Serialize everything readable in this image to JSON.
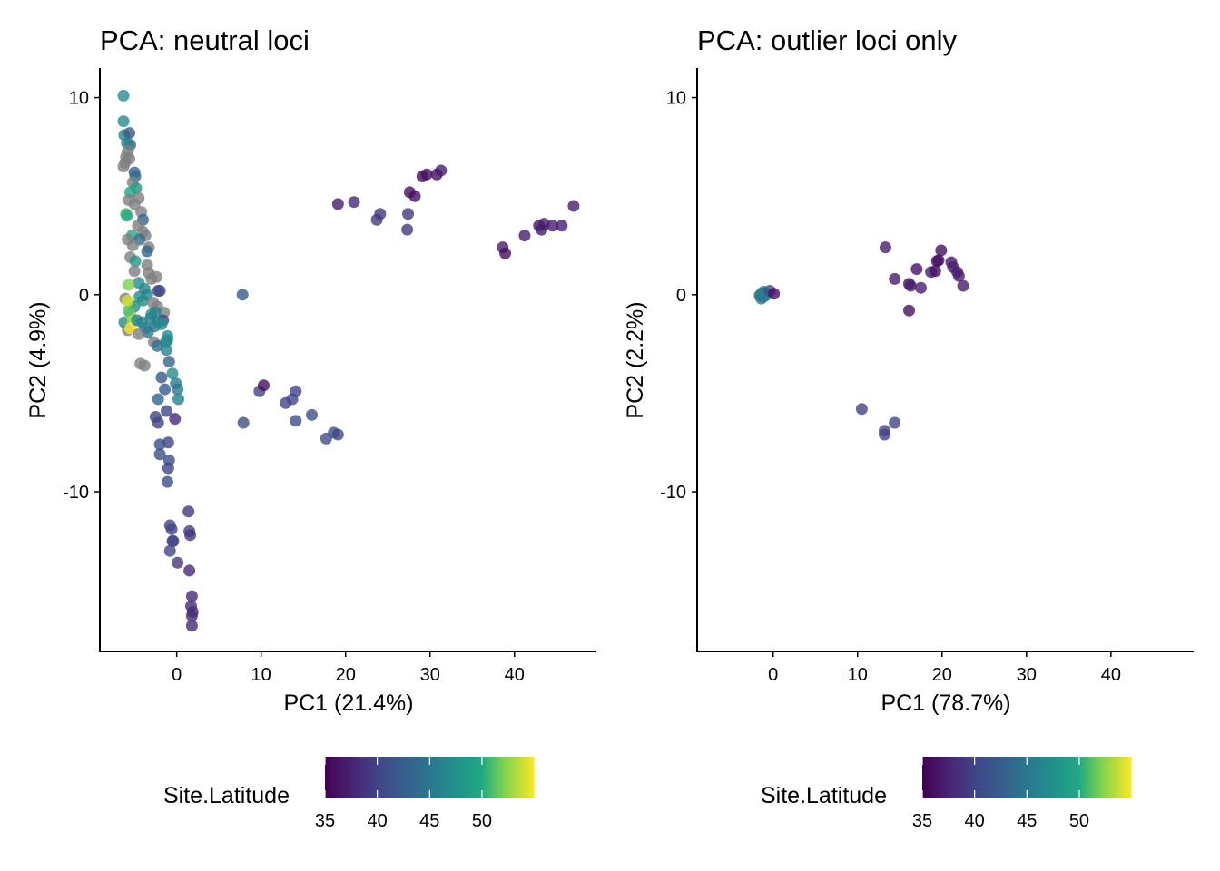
{
  "chart_data": [
    {
      "type": "scatter",
      "title": "PCA: neutral loci",
      "xlabel": "PC1 (21.4%)",
      "ylabel": "PC2 (4.9%)",
      "xlim": [
        -9.1,
        49.7
      ],
      "ylim": [
        -18.1,
        11.5
      ],
      "xticks": [
        0,
        10,
        20,
        30,
        40
      ],
      "yticks": [
        -10,
        0,
        10
      ],
      "grid": false,
      "color_by": "Site.Latitude",
      "na_color": "#7f7f7f",
      "points": [
        [
          19.1,
          4.6,
          37
        ],
        [
          21.0,
          4.7,
          38
        ],
        [
          23.7,
          3.8,
          39
        ],
        [
          24.1,
          4.1,
          39
        ],
        [
          27.3,
          3.3,
          39
        ],
        [
          27.4,
          4.1,
          39
        ],
        [
          27.6,
          5.2,
          36
        ],
        [
          28.2,
          5.0,
          36
        ],
        [
          29.1,
          6.0,
          36
        ],
        [
          29.6,
          6.1,
          36
        ],
        [
          30.8,
          6.1,
          36
        ],
        [
          31.3,
          6.3,
          37
        ],
        [
          38.6,
          2.4,
          37
        ],
        [
          38.9,
          2.1,
          36
        ],
        [
          41.2,
          3.0,
          37
        ],
        [
          42.9,
          3.5,
          37
        ],
        [
          43.2,
          3.3,
          37
        ],
        [
          43.5,
          3.6,
          37
        ],
        [
          44.5,
          3.5,
          37
        ],
        [
          45.6,
          3.5,
          37
        ],
        [
          47.0,
          4.5,
          37
        ],
        [
          7.8,
          0.0,
          42
        ],
        [
          7.9,
          -6.5,
          41
        ],
        [
          9.8,
          -4.9,
          40
        ],
        [
          10.3,
          -4.6,
          36
        ],
        [
          12.9,
          -5.5,
          40
        ],
        [
          13.7,
          -5.3,
          40
        ],
        [
          14.1,
          -4.9,
          40
        ],
        [
          14.1,
          -6.4,
          41
        ],
        [
          16.0,
          -6.1,
          41
        ],
        [
          17.7,
          -7.3,
          41
        ],
        [
          18.6,
          -7.0,
          41
        ],
        [
          19.1,
          -7.1,
          40
        ],
        [
          1.4,
          -11.0,
          39
        ],
        [
          1.5,
          -12.0,
          39
        ],
        [
          1.6,
          -12.2,
          39
        ],
        [
          1.5,
          -14.0,
          38
        ],
        [
          1.8,
          -15.3,
          38
        ],
        [
          1.7,
          -15.8,
          38
        ],
        [
          1.9,
          -16.1,
          38
        ],
        [
          1.8,
          -16.3,
          38
        ],
        [
          1.8,
          -16.8,
          38
        ],
        [
          0.1,
          -13.6,
          39
        ],
        [
          -0.8,
          -11.7,
          40
        ],
        [
          -0.6,
          -11.9,
          40
        ],
        [
          -0.4,
          -12.5,
          40
        ],
        [
          -0.8,
          -13.0,
          40
        ],
        [
          -0.5,
          -12.5,
          40
        ],
        [
          -0.2,
          -6.3,
          38
        ],
        [
          -1.0,
          -7.5,
          40
        ],
        [
          -0.9,
          -8.4,
          41
        ],
        [
          -1.0,
          -8.8,
          40
        ],
        [
          -1.1,
          -9.5,
          41
        ],
        [
          -1.2,
          -5.9,
          40
        ],
        [
          -2.0,
          -8.1,
          41
        ],
        [
          -2.0,
          -7.6,
          41
        ],
        [
          -2.5,
          -6.2,
          40
        ],
        [
          -2.2,
          -6.5,
          40
        ],
        [
          -2.2,
          -5.3,
          43
        ],
        [
          -1.4,
          -4.8,
          42
        ],
        [
          -1.8,
          -4.2,
          42
        ],
        [
          -0.1,
          -4.5,
          45
        ],
        [
          0.1,
          -4.8,
          45
        ],
        [
          0.2,
          -5.3,
          46
        ],
        [
          -0.5,
          -4.0,
          47
        ],
        [
          -0.9,
          -3.4,
          43
        ],
        [
          -1.1,
          -2.3,
          46
        ],
        [
          -1.2,
          -2.8,
          46
        ],
        [
          -4.3,
          -3.5,
          null
        ],
        [
          -3.8,
          -3.6,
          null
        ],
        [
          -5.8,
          -1.8,
          null
        ],
        [
          -6.3,
          10.1,
          47
        ],
        [
          -6.3,
          8.8,
          47
        ],
        [
          -6.2,
          8.1,
          46
        ],
        [
          -5.6,
          8.2,
          42
        ],
        [
          -5.5,
          7.6,
          43
        ],
        [
          -5.9,
          7.7,
          46
        ],
        [
          -5.8,
          7.3,
          null
        ],
        [
          -6.0,
          7.0,
          null
        ],
        [
          -5.6,
          6.9,
          null
        ],
        [
          -6.3,
          6.5,
          null
        ],
        [
          -6.1,
          6.7,
          null
        ],
        [
          -5.0,
          6.2,
          43
        ],
        [
          -4.9,
          6.0,
          44
        ],
        [
          -5.2,
          5.7,
          null
        ],
        [
          -4.8,
          5.4,
          48
        ],
        [
          -5.5,
          5.2,
          50
        ],
        [
          -5.7,
          4.8,
          null
        ],
        [
          -4.5,
          4.9,
          null
        ],
        [
          -5.0,
          4.6,
          null
        ],
        [
          -4.2,
          4.2,
          null
        ],
        [
          -6.0,
          4.1,
          51
        ],
        [
          -5.9,
          4.0,
          50
        ],
        [
          -4.0,
          3.8,
          43
        ],
        [
          -4.6,
          3.5,
          null
        ],
        [
          -4.0,
          3.2,
          null
        ],
        [
          -3.7,
          3.0,
          null
        ],
        [
          -5.3,
          3.0,
          50
        ],
        [
          -4.4,
          2.8,
          44
        ],
        [
          -3.3,
          2.4,
          null
        ],
        [
          -5.8,
          2.8,
          null
        ],
        [
          -3.5,
          2.2,
          43
        ],
        [
          -5.2,
          2.5,
          null
        ],
        [
          -5.5,
          1.9,
          null
        ],
        [
          -4.9,
          1.7,
          48
        ],
        [
          -3.5,
          1.5,
          null
        ],
        [
          -3.3,
          1.1,
          null
        ],
        [
          -5.0,
          1.2,
          null
        ],
        [
          -3.0,
          0.8,
          null
        ],
        [
          -2.4,
          0.9,
          null
        ],
        [
          -4.5,
          0.6,
          47
        ],
        [
          -2.2,
          0.2,
          42
        ],
        [
          -2.0,
          0.2,
          40
        ],
        [
          -5.7,
          0.5,
          52
        ],
        [
          -6.1,
          -0.2,
          null
        ],
        [
          -5.5,
          -0.5,
          53
        ],
        [
          -5.0,
          -0.6,
          47
        ],
        [
          -4.0,
          -0.3,
          47
        ],
        [
          -3.5,
          0.0,
          46
        ],
        [
          -2.8,
          -0.4,
          null
        ],
        [
          -2.3,
          -0.6,
          null
        ],
        [
          -1.5,
          -0.9,
          null
        ],
        [
          -1.6,
          -1.3,
          40
        ],
        [
          -6.2,
          -1.4,
          47
        ],
        [
          -5.5,
          -1.0,
          52
        ],
        [
          -5.7,
          -0.8,
          51
        ],
        [
          -5.2,
          -1.3,
          53
        ],
        [
          -5.5,
          -1.7,
          55
        ],
        [
          -4.7,
          -1.3,
          46
        ],
        [
          -4.1,
          -1.4,
          46
        ],
        [
          -3.7,
          -1.7,
          46
        ],
        [
          -3.4,
          -1.9,
          45
        ],
        [
          -2.6,
          -1.6,
          45
        ],
        [
          -2.2,
          -1.4,
          46
        ],
        [
          -1.8,
          -1.5,
          47
        ],
        [
          -2.7,
          -2.4,
          null
        ],
        [
          -1.3,
          -2.4,
          47
        ],
        [
          -1.1,
          -2.1,
          47
        ],
        [
          -2.3,
          -2.6,
          44
        ],
        [
          -3.0,
          -1.0,
          48
        ],
        [
          -4.4,
          -0.1,
          47
        ],
        [
          -3.8,
          0.3,
          46
        ],
        [
          -4.5,
          -2.0,
          null
        ],
        [
          -5.8,
          -0.3,
          54
        ],
        [
          -3.1,
          -1.2,
          46
        ],
        [
          -2.5,
          -0.9,
          46
        ]
      ],
      "legend": {
        "title": "Site.Latitude",
        "ticks": [
          35,
          40,
          45,
          50
        ],
        "range": [
          35,
          55
        ],
        "colormap": "viridis",
        "placement": "bottom"
      }
    },
    {
      "type": "scatter",
      "title": "PCA: outlier loci only",
      "xlabel": "PC1 (78.7%)",
      "ylabel": "PC2 (2.2%)",
      "xlim": [
        -9.0,
        49.8
      ],
      "ylim": [
        -18.1,
        11.5
      ],
      "xticks": [
        0,
        10,
        20,
        30,
        40
      ],
      "yticks": [
        -10,
        0,
        10
      ],
      "grid": false,
      "color_by": "Site.Latitude",
      "na_color": "#7f7f7f",
      "points": [
        [
          -1.5,
          0.0,
          46
        ],
        [
          -1.3,
          0.1,
          47
        ],
        [
          -1.2,
          -0.1,
          45
        ],
        [
          -1.6,
          -0.05,
          46
        ],
        [
          -1.0,
          0.05,
          47
        ],
        [
          -1.4,
          -0.2,
          45
        ],
        [
          -1.1,
          0.15,
          46
        ],
        [
          -0.9,
          -0.05,
          45
        ],
        [
          -0.4,
          0.2,
          41
        ],
        [
          0.1,
          0.05,
          36
        ],
        [
          13.3,
          2.4,
          37
        ],
        [
          14.4,
          0.8,
          37
        ],
        [
          16.1,
          0.55,
          36
        ],
        [
          16.3,
          0.45,
          37
        ],
        [
          17.0,
          1.3,
          36
        ],
        [
          17.5,
          0.35,
          37
        ],
        [
          16.1,
          -0.8,
          36
        ],
        [
          18.7,
          1.15,
          37
        ],
        [
          19.2,
          1.2,
          36
        ],
        [
          19.4,
          1.7,
          36
        ],
        [
          19.6,
          1.75,
          36
        ],
        [
          19.9,
          2.25,
          36
        ],
        [
          21.1,
          1.65,
          37
        ],
        [
          21.3,
          1.4,
          37
        ],
        [
          21.8,
          1.15,
          37
        ],
        [
          22.0,
          0.95,
          37
        ],
        [
          22.5,
          0.45,
          37
        ],
        [
          10.5,
          -5.8,
          40
        ],
        [
          13.2,
          -6.9,
          40
        ],
        [
          13.2,
          -7.1,
          40
        ],
        [
          14.4,
          -6.5,
          40
        ]
      ],
      "legend": {
        "title": "Site.Latitude",
        "ticks": [
          35,
          40,
          45,
          50
        ],
        "range": [
          35,
          55
        ],
        "colormap": "viridis",
        "placement": "bottom"
      }
    }
  ]
}
